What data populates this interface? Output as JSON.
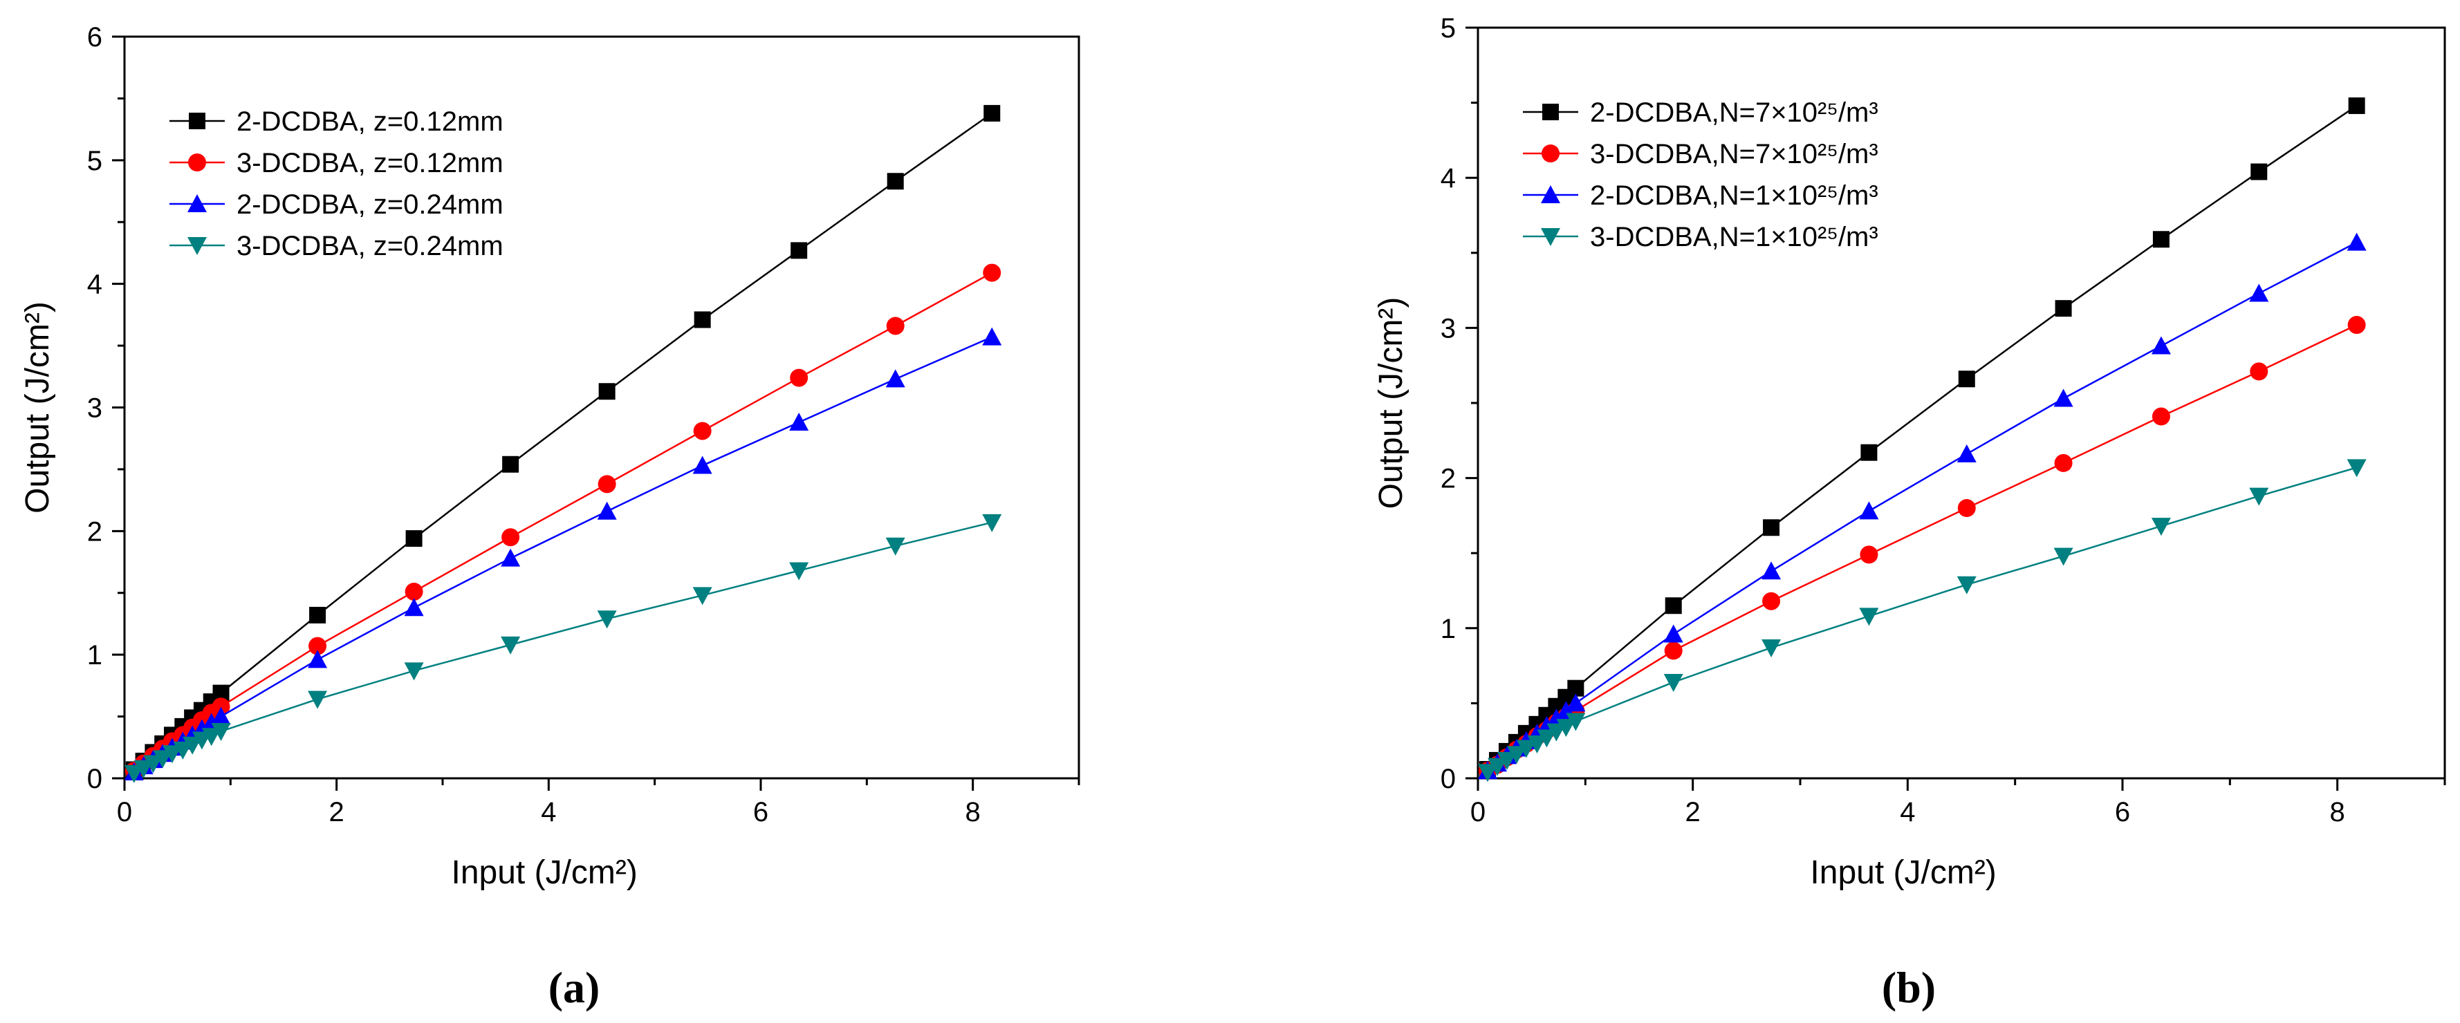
{
  "chart_data": [
    {
      "type": "line",
      "panel_label": "(a)",
      "xlabel": "Input (J/cm²)",
      "ylabel": "Output (J/cm²)",
      "xlim": [
        0,
        9
      ],
      "ylim": [
        0,
        6
      ],
      "xticks": [
        0,
        2,
        4,
        6,
        8
      ],
      "yticks": [
        0,
        1,
        2,
        3,
        4,
        5,
        6
      ],
      "grid": false,
      "legend_position": "top-left",
      "series": [
        {
          "name": "2-DCDBA, z=0.12mm",
          "color": "#000000",
          "marker": "square",
          "x": [
            0.09,
            0.18,
            0.27,
            0.36,
            0.45,
            0.55,
            0.64,
            0.73,
            0.82,
            0.91,
            1.82,
            2.73,
            3.64,
            4.55,
            5.45,
            6.36,
            7.27,
            8.18
          ],
          "y": [
            0.07,
            0.14,
            0.21,
            0.28,
            0.35,
            0.42,
            0.49,
            0.55,
            0.62,
            0.69,
            1.32,
            1.94,
            2.54,
            3.13,
            3.71,
            4.27,
            4.83,
            5.38
          ]
        },
        {
          "name": "3-DCDBA, z=0.12mm",
          "color": "#ff0000",
          "marker": "circle",
          "x": [
            0.09,
            0.18,
            0.27,
            0.36,
            0.45,
            0.55,
            0.64,
            0.73,
            0.82,
            0.91,
            1.82,
            2.73,
            3.64,
            4.55,
            5.45,
            6.36,
            7.27,
            8.18
          ],
          "y": [
            0.06,
            0.12,
            0.18,
            0.24,
            0.3,
            0.35,
            0.41,
            0.47,
            0.53,
            0.58,
            1.07,
            1.51,
            1.95,
            2.38,
            2.81,
            3.24,
            3.66,
            4.09
          ]
        },
        {
          "name": "2-DCDBA, z=0.24mm",
          "color": "#0000ff",
          "marker": "triangle-up",
          "x": [
            0.09,
            0.18,
            0.27,
            0.36,
            0.45,
            0.55,
            0.64,
            0.73,
            0.82,
            0.91,
            1.82,
            2.73,
            3.64,
            4.55,
            5.45,
            6.36,
            7.27,
            8.18
          ],
          "y": [
            0.05,
            0.1,
            0.15,
            0.2,
            0.25,
            0.3,
            0.35,
            0.4,
            0.45,
            0.5,
            0.96,
            1.38,
            1.78,
            2.16,
            2.53,
            2.88,
            3.23,
            3.57
          ]
        },
        {
          "name": "3-DCDBA, z=0.24mm",
          "color": "#008080",
          "marker": "triangle-down",
          "x": [
            0.09,
            0.18,
            0.27,
            0.36,
            0.45,
            0.55,
            0.64,
            0.73,
            0.82,
            0.91,
            1.82,
            2.73,
            3.64,
            4.55,
            5.45,
            6.36,
            7.27,
            8.18
          ],
          "y": [
            0.04,
            0.08,
            0.12,
            0.16,
            0.2,
            0.23,
            0.27,
            0.31,
            0.34,
            0.38,
            0.64,
            0.87,
            1.08,
            1.29,
            1.48,
            1.68,
            1.88,
            2.07
          ]
        }
      ]
    },
    {
      "type": "line",
      "panel_label": "(b)",
      "xlabel": "Input (J/cm²)",
      "ylabel": "Output (J/cm²)",
      "xlim": [
        0,
        9
      ],
      "ylim": [
        0,
        5
      ],
      "xticks": [
        0,
        2,
        4,
        6,
        8
      ],
      "yticks": [
        0,
        1,
        2,
        3,
        4,
        5
      ],
      "grid": false,
      "legend_position": "top-left",
      "series": [
        {
          "name": "2-DCDBA,N=7×10²⁵/m³",
          "color": "#000000",
          "marker": "square",
          "x": [
            0.09,
            0.18,
            0.27,
            0.36,
            0.45,
            0.55,
            0.64,
            0.73,
            0.82,
            0.91,
            1.82,
            2.73,
            3.64,
            4.55,
            5.45,
            6.36,
            7.27,
            8.18
          ],
          "y": [
            0.06,
            0.12,
            0.18,
            0.24,
            0.3,
            0.36,
            0.42,
            0.48,
            0.54,
            0.6,
            1.15,
            1.67,
            2.17,
            2.66,
            3.13,
            3.59,
            4.04,
            4.48
          ]
        },
        {
          "name": "3-DCDBA,N=7×10²⁵/m³",
          "color": "#ff0000",
          "marker": "circle",
          "x": [
            0.09,
            0.18,
            0.27,
            0.36,
            0.45,
            0.55,
            0.64,
            0.73,
            0.82,
            0.91,
            1.82,
            2.73,
            3.64,
            4.55,
            5.45,
            6.36,
            7.27,
            8.18
          ],
          "y": [
            0.05,
            0.09,
            0.14,
            0.19,
            0.23,
            0.28,
            0.32,
            0.37,
            0.41,
            0.45,
            0.85,
            1.18,
            1.49,
            1.8,
            2.1,
            2.41,
            2.71,
            3.02
          ]
        },
        {
          "name": "2-DCDBA,N=1×10²⁵/m³",
          "color": "#0000ff",
          "marker": "triangle-up",
          "x": [
            0.09,
            0.18,
            0.27,
            0.36,
            0.45,
            0.55,
            0.64,
            0.73,
            0.82,
            0.91,
            1.82,
            2.73,
            3.64,
            4.55,
            5.45,
            6.36,
            7.27,
            8.18
          ],
          "y": [
            0.05,
            0.1,
            0.15,
            0.2,
            0.25,
            0.3,
            0.35,
            0.4,
            0.45,
            0.5,
            0.96,
            1.38,
            1.78,
            2.16,
            2.53,
            2.88,
            3.23,
            3.57
          ]
        },
        {
          "name": "3-DCDBA,N=1×10²⁵/m³",
          "color": "#008080",
          "marker": "triangle-down",
          "x": [
            0.09,
            0.18,
            0.27,
            0.36,
            0.45,
            0.55,
            0.64,
            0.73,
            0.82,
            0.91,
            1.82,
            2.73,
            3.64,
            4.55,
            5.45,
            6.36,
            7.27,
            8.18
          ],
          "y": [
            0.04,
            0.08,
            0.12,
            0.16,
            0.2,
            0.23,
            0.27,
            0.31,
            0.34,
            0.38,
            0.64,
            0.87,
            1.08,
            1.29,
            1.48,
            1.68,
            1.88,
            2.07
          ]
        }
      ]
    }
  ]
}
